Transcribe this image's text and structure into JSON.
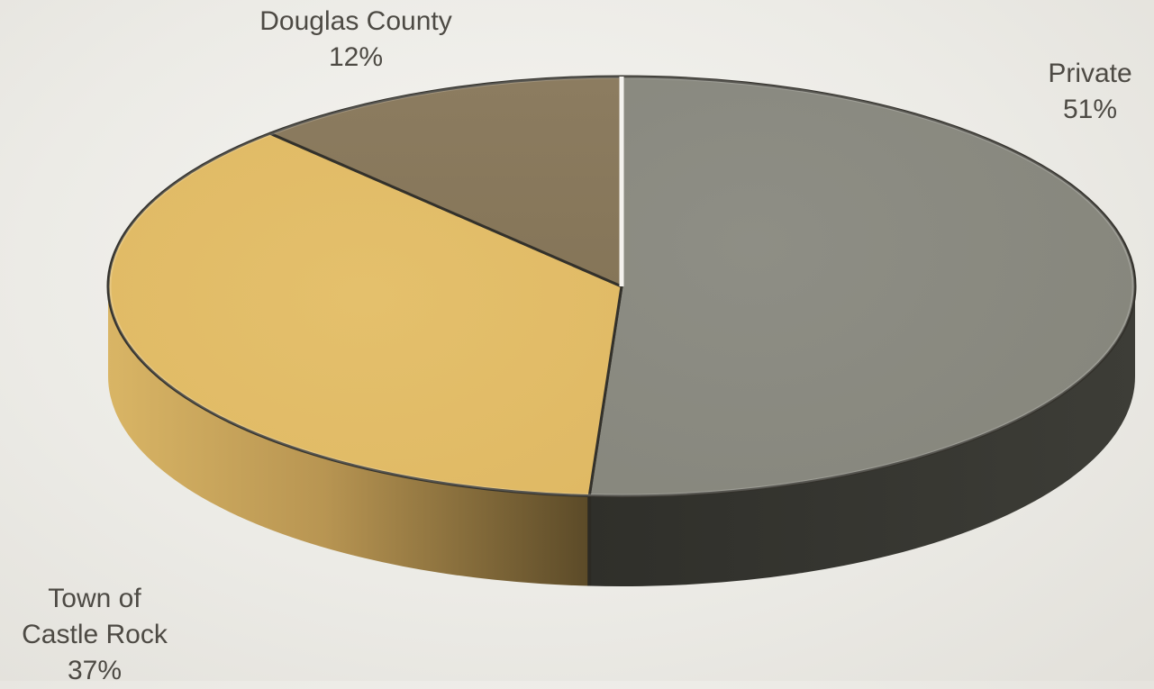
{
  "chart_data": {
    "type": "pie",
    "style": "3d",
    "slices": [
      {
        "label": "Private",
        "value": 51,
        "display": "51%",
        "color": "#8a8a80",
        "side_color": "#3a3a34"
      },
      {
        "label": "Town of Castle Rock",
        "label_lines": [
          "Town of",
          "Castle Rock"
        ],
        "value": 37,
        "display": "37%",
        "color": "#e2bd68",
        "side_color": "#b89850"
      },
      {
        "label": "Douglas County",
        "value": 12,
        "display": "12%",
        "color": "#8a7a5e",
        "side_color": "#5e5240"
      }
    ],
    "data_labels": "category and percentage"
  }
}
